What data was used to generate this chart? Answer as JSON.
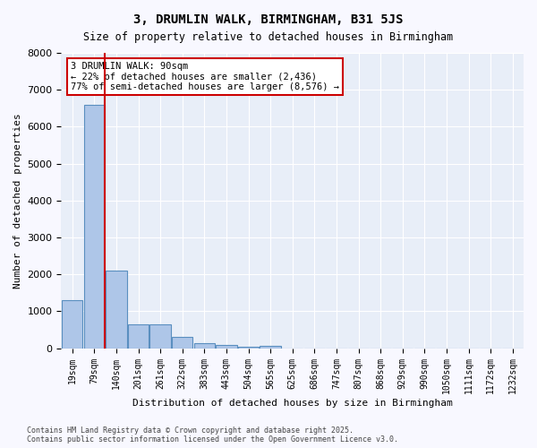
{
  "title": "3, DRUMLIN WALK, BIRMINGHAM, B31 5JS",
  "subtitle": "Size of property relative to detached houses in Birmingham",
  "xlabel": "Distribution of detached houses by size in Birmingham",
  "ylabel": "Number of detached properties",
  "annotation_title": "3 DRUMLIN WALK: 90sqm",
  "annotation_line1": "← 22% of detached houses are smaller (2,436)",
  "annotation_line2": "77% of semi-detached houses are larger (8,576) →",
  "property_line_x": 1.48,
  "bar_values": [
    1300,
    6600,
    2100,
    650,
    650,
    300,
    130,
    90,
    40,
    55,
    0,
    0,
    0,
    0,
    0,
    0,
    0,
    0,
    0,
    0,
    0
  ],
  "bin_labels": [
    "19sqm",
    "79sqm",
    "140sqm",
    "201sqm",
    "261sqm",
    "322sqm",
    "383sqm",
    "443sqm",
    "504sqm",
    "565sqm",
    "625sqm",
    "686sqm",
    "747sqm",
    "807sqm",
    "868sqm",
    "929sqm",
    "990sqm",
    "1050sqm",
    "1111sqm",
    "1172sqm",
    "1232sqm"
  ],
  "bar_color": "#aec6e8",
  "bar_edge_color": "#5a8fc0",
  "property_line_color": "#cc0000",
  "background_color": "#e8eef8",
  "grid_color": "#ffffff",
  "ylim": [
    0,
    8000
  ],
  "yticks": [
    0,
    1000,
    2000,
    3000,
    4000,
    5000,
    6000,
    7000,
    8000
  ],
  "footer_line1": "Contains HM Land Registry data © Crown copyright and database right 2025.",
  "footer_line2": "Contains public sector information licensed under the Open Government Licence v3.0."
}
